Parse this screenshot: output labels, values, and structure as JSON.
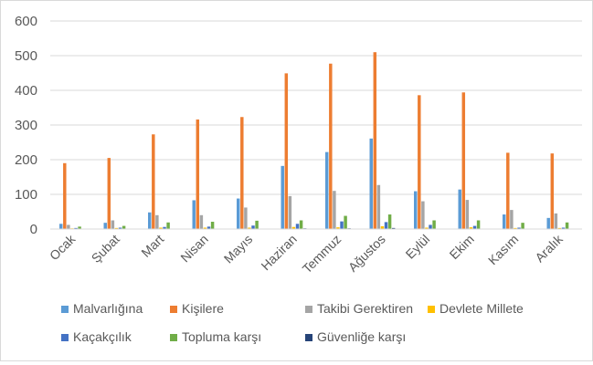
{
  "chart_data": {
    "type": "bar",
    "title": "",
    "xlabel": "",
    "ylabel": "",
    "ylim": [
      0,
      600
    ],
    "yticks": [
      0,
      100,
      200,
      300,
      400,
      500,
      600
    ],
    "grid": "horizontal",
    "legend_position": "bottom",
    "categories": [
      "Ocak",
      "Şubat",
      "Mart",
      "Nisan",
      "Mayıs",
      "Haziran",
      "Temmuz",
      "Ağustos",
      "Eylül",
      "Ekim",
      "Kasım",
      "Aralık"
    ],
    "series": [
      {
        "name": "Malvarlığına",
        "color": "#5B9BD5",
        "values": [
          15,
          18,
          48,
          83,
          88,
          182,
          222,
          261,
          109,
          114,
          42,
          32
        ]
      },
      {
        "name": "Kişilere",
        "color": "#ED7D31",
        "values": [
          190,
          205,
          273,
          316,
          323,
          449,
          477,
          510,
          386,
          394,
          220,
          218
        ]
      },
      {
        "name": "Takibi Gerektiren",
        "color": "#A5A5A5",
        "values": [
          12,
          25,
          40,
          40,
          62,
          95,
          110,
          127,
          80,
          84,
          55,
          45
        ]
      },
      {
        "name": "Devlete Millete",
        "color": "#FFC000",
        "values": [
          2,
          3,
          4,
          4,
          4,
          6,
          5,
          8,
          4,
          5,
          3,
          3
        ]
      },
      {
        "name": "Kaçakçılık",
        "color": "#4472C4",
        "values": [
          3,
          4,
          6,
          7,
          10,
          15,
          22,
          20,
          12,
          9,
          4,
          4
        ]
      },
      {
        "name": "Topluma karşı",
        "color": "#70AD47",
        "values": [
          7,
          9,
          19,
          21,
          24,
          25,
          38,
          42,
          25,
          25,
          18,
          19
        ]
      },
      {
        "name": "Güvenliğe karşı",
        "color": "#264478",
        "values": [
          1,
          1,
          1,
          1,
          1,
          2,
          2,
          3,
          1,
          1,
          1,
          1
        ]
      }
    ]
  }
}
